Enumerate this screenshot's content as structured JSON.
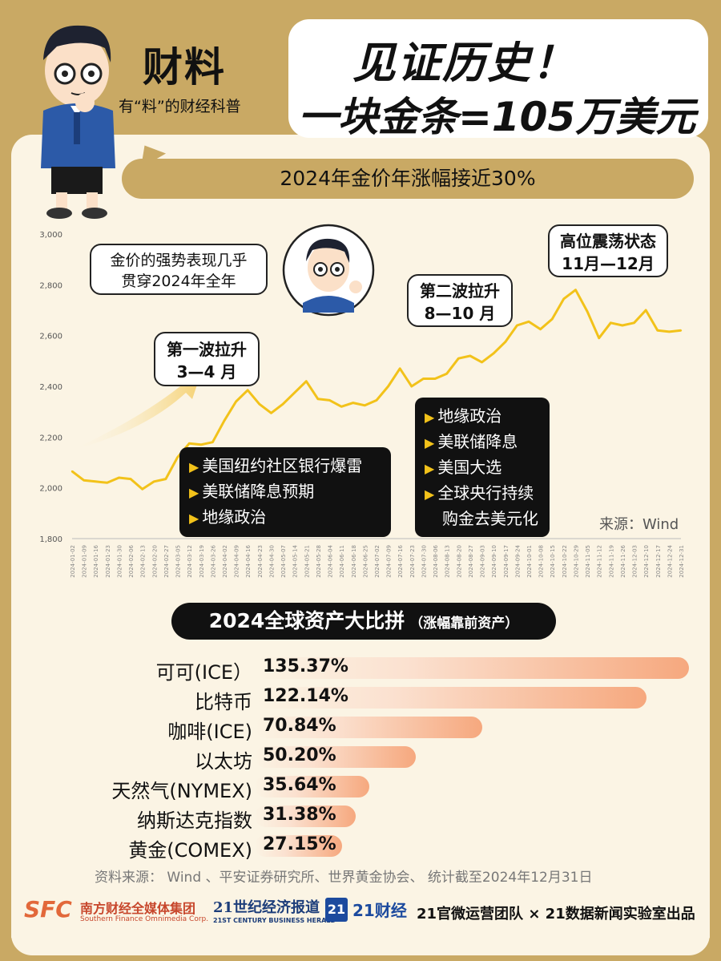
{
  "brand": {
    "logo": "财料",
    "slogan": "有“料”的财经科普"
  },
  "headline": {
    "line1": "见证历史！",
    "line2": "一块金条=105万美元"
  },
  "subtitle_pill": "2024年金价年涨幅接近30%",
  "bubbles": {
    "intro_line1": "金价的强势表现几乎",
    "intro_line2": "贯穿2024年全年",
    "wave1_line1": "第一波拉升",
    "wave1_line2": "3—4 月",
    "wave2_line1": "第二波拉升",
    "wave2_line2": "8—10 月",
    "high_line1": "高位震荡状态",
    "high_line2": "11月—12月"
  },
  "callouts": {
    "wave1": [
      "美国纽约社区银行爆雷",
      "美联储降息预期",
      "地缘政治"
    ],
    "wave2": [
      "地缘政治",
      "美联储降息",
      "美国大选",
      "全球央行持续",
      "购金去美元化"
    ]
  },
  "source_chart": "来源：Wind",
  "chart_data": [
    {
      "type": "line",
      "ylim": [
        1800,
        3000
      ],
      "y_ticks": [
        "3,000",
        "2,800",
        "2,600",
        "2,400",
        "2,200",
        "2,000",
        "1,800"
      ],
      "x_ticks": [
        "2024-01-02",
        "2024-01-09",
        "2024-01-16",
        "2024-01-23",
        "2024-01-30",
        "2024-02-06",
        "2024-02-13",
        "2024-02-20",
        "2024-02-27",
        "2024-03-05",
        "2024-03-12",
        "2024-03-19",
        "2024-03-26",
        "2024-04-02",
        "2024-04-09",
        "2024-04-16",
        "2024-04-23",
        "2024-04-30",
        "2024-05-07",
        "2024-05-14",
        "2024-05-21",
        "2024-05-28",
        "2024-06-04",
        "2024-06-11",
        "2024-06-18",
        "2024-06-25",
        "2024-07-02",
        "2024-07-09",
        "2024-07-16",
        "2024-07-23",
        "2024-07-30",
        "2024-08-06",
        "2024-08-13",
        "2024-08-20",
        "2024-08-27",
        "2024-09-03",
        "2024-09-10",
        "2024-09-17",
        "2024-09-24",
        "2024-10-01",
        "2024-10-08",
        "2024-10-15",
        "2024-10-22",
        "2024-10-29",
        "2024-11-05",
        "2024-11-12",
        "2024-11-19",
        "2024-11-26",
        "2024-12-03",
        "2024-12-10",
        "2024-12-17",
        "2024-12-24",
        "2024-12-31"
      ],
      "x": [
        "2024-01-02",
        "2024-01-09",
        "2024-01-16",
        "2024-01-23",
        "2024-01-30",
        "2024-02-06",
        "2024-02-13",
        "2024-02-20",
        "2024-02-27",
        "2024-03-05",
        "2024-03-12",
        "2024-03-19",
        "2024-03-26",
        "2024-04-02",
        "2024-04-09",
        "2024-04-16",
        "2024-04-23",
        "2024-04-30",
        "2024-05-07",
        "2024-05-14",
        "2024-05-21",
        "2024-05-28",
        "2024-06-04",
        "2024-06-11",
        "2024-06-18",
        "2024-06-25",
        "2024-07-02",
        "2024-07-09",
        "2024-07-16",
        "2024-07-23",
        "2024-07-30",
        "2024-08-06",
        "2024-08-13",
        "2024-08-20",
        "2024-08-27",
        "2024-09-03",
        "2024-09-10",
        "2024-09-17",
        "2024-09-24",
        "2024-10-01",
        "2024-10-08",
        "2024-10-15",
        "2024-10-22",
        "2024-10-29",
        "2024-11-05",
        "2024-11-12",
        "2024-11-19",
        "2024-11-26",
        "2024-12-03",
        "2024-12-10",
        "2024-12-17",
        "2024-12-24",
        "2024-12-31"
      ],
      "values": [
        2065,
        2030,
        2025,
        2020,
        2040,
        2035,
        1995,
        2025,
        2035,
        2120,
        2175,
        2170,
        2180,
        2265,
        2340,
        2385,
        2330,
        2295,
        2330,
        2375,
        2420,
        2350,
        2345,
        2320,
        2335,
        2325,
        2345,
        2400,
        2470,
        2400,
        2430,
        2430,
        2450,
        2510,
        2520,
        2495,
        2530,
        2575,
        2640,
        2655,
        2625,
        2665,
        2745,
        2780,
        2695,
        2590,
        2650,
        2640,
        2650,
        2700,
        2620,
        2615,
        2620
      ],
      "color": "#f2c21a"
    },
    {
      "type": "bar",
      "title": "2024全球资产大比拼",
      "subtitle": "（涨幅靠前资产）",
      "categories": [
        "可可(ICE）",
        "比特币",
        "咖啡(ICE)",
        "以太坊",
        "天然气(NYMEX)",
        "纳斯达克指数",
        "黄金(COMEX)"
      ],
      "values": [
        135.37,
        122.14,
        70.84,
        50.2,
        35.64,
        31.38,
        27.15
      ],
      "value_labels": [
        "135.37%",
        "122.14%",
        "70.84%",
        "50.20%",
        "35.64%",
        "31.38%",
        "27.15%"
      ],
      "color": "#f6a87e"
    }
  ],
  "footnote": "资料来源： Wind 、平安证券研究所、世界黄金协会、 统计截至2024年12月31日",
  "footer": {
    "sfc_logo": "SFC",
    "sfc_name": "南方财经全媒体集团",
    "sfc_en": "Southern Finance Omnimedia Corp.",
    "herald": "21世纪经济报道",
    "herald_en": "21ST CENTURY BUSINESS HERALD",
    "caijing_badge": "21",
    "caijing": "21财经",
    "credit": "21官微运营团队 × 21数据新闻实验室出品"
  }
}
